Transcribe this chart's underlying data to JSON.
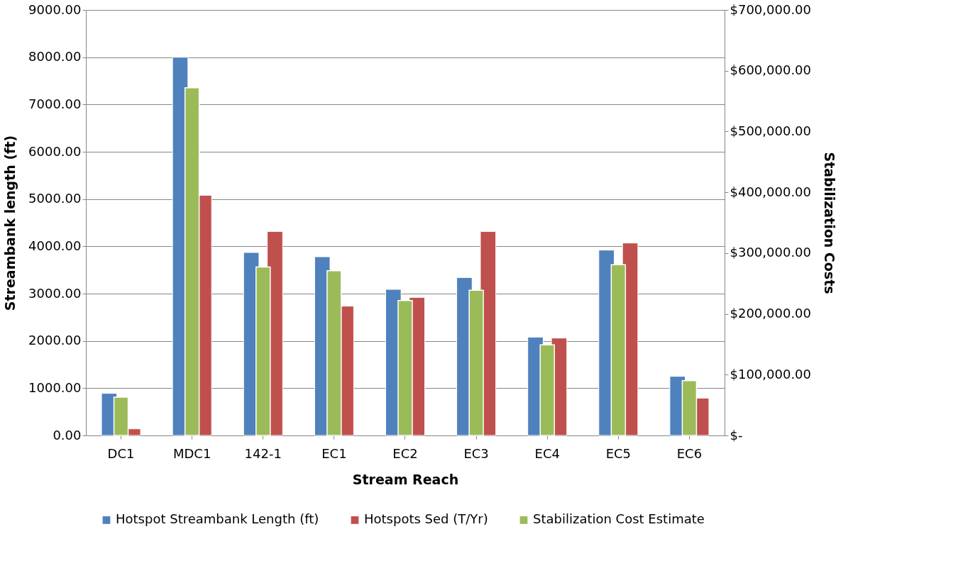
{
  "chart_data": {
    "type": "bar",
    "xlabel": "Stream Reach",
    "ylabel": "Streambank length (ft)",
    "y2label": "Stabilization Costs",
    "categories": [
      "DC1",
      "MDC1",
      "142-1",
      "EC1",
      "EC2",
      "EC3",
      "EC4",
      "EC5",
      "EC6"
    ],
    "series": [
      {
        "name": "Hotspot Streambank Length (ft)",
        "color": "#4f81bd",
        "values": [
          890,
          8000,
          3870,
          3780,
          3090,
          3340,
          2080,
          3920,
          1250
        ]
      },
      {
        "name": "Hotspots Sed (T/Yr)",
        "color": "#c0504d",
        "values": [
          140,
          5080,
          4315,
          2735,
          2920,
          4315,
          2060,
          4070,
          790
        ]
      },
      {
        "name": "Stabilization Cost Estimate",
        "color": "#9bbb59",
        "axis": "y2",
        "values": [
          63000,
          572000,
          277000,
          271000,
          222000,
          239000,
          149000,
          281000,
          90000
        ]
      }
    ],
    "ylim": [
      0,
      9000
    ],
    "yticks": [
      {
        "value": 0,
        "label": "0.00"
      },
      {
        "value": 1000,
        "label": "1000.00"
      },
      {
        "value": 2000,
        "label": "2000.00"
      },
      {
        "value": 3000,
        "label": "3000.00"
      },
      {
        "value": 4000,
        "label": "4000.00"
      },
      {
        "value": 5000,
        "label": "5000.00"
      },
      {
        "value": 6000,
        "label": "6000.00"
      },
      {
        "value": 7000,
        "label": "7000.00"
      },
      {
        "value": 8000,
        "label": "8000.00"
      },
      {
        "value": 9000,
        "label": "9000.00"
      }
    ],
    "y2lim": [
      0,
      700000
    ],
    "y2ticks": [
      {
        "value": 0,
        "label": "$-"
      },
      {
        "value": 100000,
        "label": "$100,000.00"
      },
      {
        "value": 200000,
        "label": "$200,000.00"
      },
      {
        "value": 300000,
        "label": "$300,000.00"
      },
      {
        "value": 400000,
        "label": "$400,000.00"
      },
      {
        "value": 500000,
        "label": "$500,000.00"
      },
      {
        "value": 600000,
        "label": "$600,000.00"
      },
      {
        "value": 700000,
        "label": "$700,000.00"
      }
    ],
    "grid": "y",
    "legend": "bottom"
  }
}
